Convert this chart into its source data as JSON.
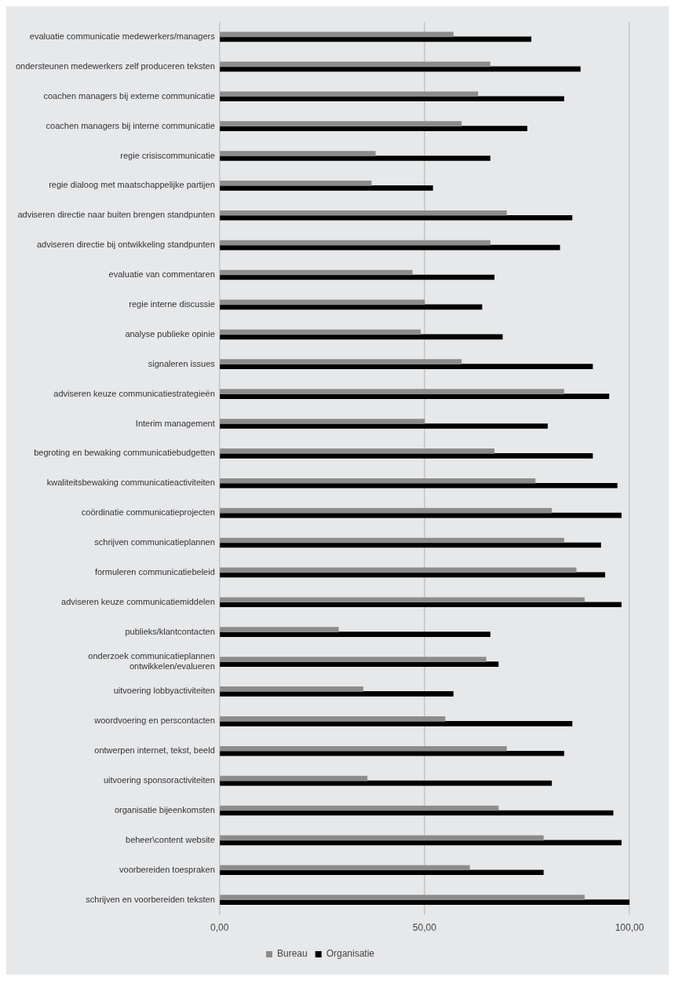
{
  "chart_data": {
    "type": "bar",
    "orientation": "horizontal",
    "categories": [
      "evaluatie communicatie medewerkers/managers",
      "ondersteunen medewerkers zelf produceren teksten",
      "coachen managers bij externe communicatie",
      "coachen managers bij interne communicatie",
      "regie crisiscommunicatie",
      "regie dialoog met maatschappelijke partijen",
      "adviseren directie naar buiten brengen standpunten",
      "adviseren directie bij ontwikkeling standpunten",
      "evaluatie van commentaren",
      "regie interne discussie",
      "analyse publieke opinie",
      "signaleren issues",
      "adviseren keuze communicatiestrategieën",
      "Interim management",
      "begroting en bewaking communicatiebudgetten",
      "kwaliteitsbewaking communicatieactiviteiten",
      "coördinatie communicatieprojecten",
      "schrijven communicatieplannen",
      "formuleren communicatiebeleid",
      "adviseren keuze communicatiemiddelen",
      "publieks/klantcontacten",
      "onderzoek communicatieplannen ontwikkelen/evalueren",
      "uitvoering lobbyactiviteiten",
      "woordvoering en perscontacten",
      "ontwerpen internet, tekst, beeld",
      "uitvoering sponsoractiviteiten",
      "organisatie bijeenkomsten",
      "beheer\\content website",
      "voorbereiden toespraken",
      "schrijven en voorbereiden teksten"
    ],
    "series": [
      {
        "name": "Bureau",
        "color": "#8c8c8c",
        "values": [
          57,
          66,
          63,
          59,
          38,
          37,
          70,
          66,
          47,
          50,
          49,
          59,
          84,
          50,
          67,
          77,
          81,
          84,
          87,
          89,
          29,
          65,
          35,
          55,
          70,
          36,
          68,
          79,
          61,
          89
        ]
      },
      {
        "name": "Organisatie",
        "color": "#000000",
        "values": [
          76,
          88,
          84,
          75,
          66,
          52,
          86,
          83,
          67,
          64,
          69,
          91,
          95,
          80,
          91,
          97,
          98,
          93,
          94,
          98,
          66,
          68,
          57,
          86,
          84,
          81,
          96,
          98,
          79,
          100
        ]
      }
    ],
    "xlim": [
      0,
      100
    ],
    "xticks": [
      {
        "value": 0,
        "label": "0,00"
      },
      {
        "value": 50,
        "label": "50,00"
      },
      {
        "value": 100,
        "label": "100,00"
      }
    ],
    "grid": "x",
    "legend": "bottom"
  }
}
